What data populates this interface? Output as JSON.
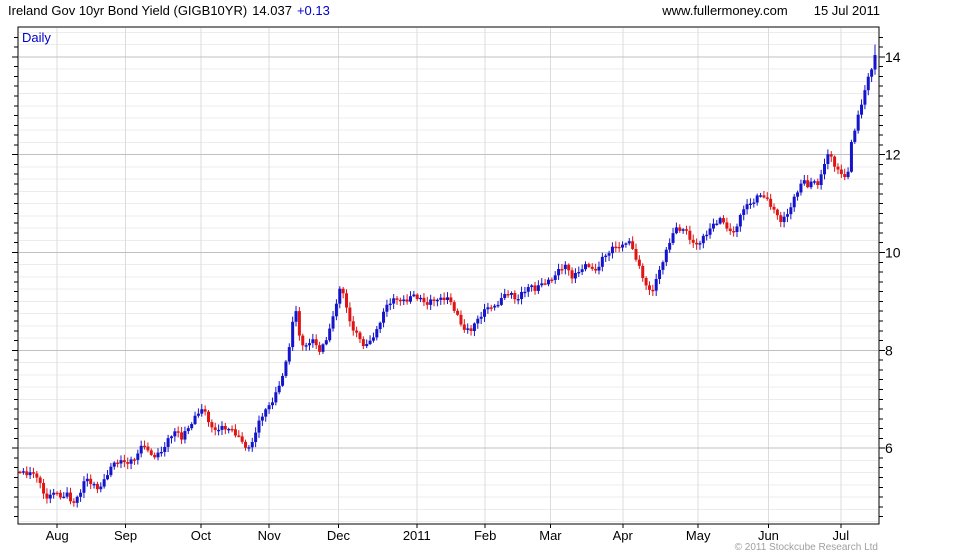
{
  "header": {
    "title": "Ireland Gov 10yr Bond Yield (GIGB10YR)",
    "last_value": "14.037",
    "change": "+0.13",
    "website": "www.fullermoney.com",
    "date": "15 Jul 2011"
  },
  "chart": {
    "frequency_label": "Daily",
    "copyright": "© 2011 Stockcube Research Ltd"
  },
  "colors": {
    "up": "#1414cc",
    "down": "#e01414",
    "grid_minor": "#ececec",
    "grid_major": "#c0c0c0",
    "grid_vertical": "#dcdcdc",
    "axis": "#000000",
    "accent_blue": "#0000cc",
    "copyright_gray": "#a0a0a0"
  },
  "chart_data": {
    "type": "candlestick",
    "title": "Ireland Gov 10yr Bond Yield (GIGB10YR)",
    "frequency": "Daily",
    "last_close": 14.037,
    "change": "+0.13",
    "x_domain": [
      "15 Jul 2010",
      "15 Jul 2011"
    ],
    "ylim": [
      4.45,
      14.61
    ],
    "y_major_ticks": [
      6,
      8,
      10,
      12,
      14
    ],
    "y_minor_tick_step": 0.2,
    "grid_minor_step": 0.25,
    "bar_count": 255,
    "final_high": 14.25,
    "legend_position": "none",
    "grid": "on",
    "month_ticks": [
      {
        "label": "Aug",
        "t": 0.0455
      },
      {
        "label": "Sep",
        "t": 0.1249
      },
      {
        "label": "Oct",
        "t": 0.2124
      },
      {
        "label": "Nov",
        "t": 0.2917
      },
      {
        "label": "Dec",
        "t": 0.3722
      },
      {
        "label": "2011",
        "t": 0.4632
      },
      {
        "label": "Feb",
        "t": 0.5426
      },
      {
        "label": "Mar",
        "t": 0.6184
      },
      {
        "label": "Apr",
        "t": 0.7024
      },
      {
        "label": "May",
        "t": 0.79
      },
      {
        "label": "Jun",
        "t": 0.8716
      },
      {
        "label": "Jul",
        "t": 0.9557
      }
    ],
    "points_note": "digitized daily-close path; t = fraction of time axis from 15 Jul 2010 to 15 Jul 2011, v = yield %",
    "points": [
      [
        0.002,
        5.5
      ],
      [
        0.012,
        5.45
      ],
      [
        0.021,
        5.48
      ],
      [
        0.028,
        5.18
      ],
      [
        0.035,
        4.95
      ],
      [
        0.042,
        5.12
      ],
      [
        0.049,
        4.95
      ],
      [
        0.056,
        5.1
      ],
      [
        0.063,
        4.9
      ],
      [
        0.07,
        5.0
      ],
      [
        0.078,
        5.35
      ],
      [
        0.085,
        5.28
      ],
      [
        0.092,
        5.18
      ],
      [
        0.1,
        5.35
      ],
      [
        0.107,
        5.6
      ],
      [
        0.116,
        5.7
      ],
      [
        0.126,
        5.72
      ],
      [
        0.134,
        5.78
      ],
      [
        0.141,
        5.95
      ],
      [
        0.146,
        6.08
      ],
      [
        0.153,
        5.83
      ],
      [
        0.161,
        5.86
      ],
      [
        0.169,
        6.02
      ],
      [
        0.177,
        6.25
      ],
      [
        0.184,
        6.32
      ],
      [
        0.19,
        6.2
      ],
      [
        0.198,
        6.45
      ],
      [
        0.207,
        6.68
      ],
      [
        0.212,
        6.8
      ],
      [
        0.218,
        6.68
      ],
      [
        0.226,
        6.35
      ],
      [
        0.235,
        6.45
      ],
      [
        0.243,
        6.42
      ],
      [
        0.251,
        6.3
      ],
      [
        0.26,
        6.12
      ],
      [
        0.268,
        6.0
      ],
      [
        0.275,
        6.3
      ],
      [
        0.282,
        6.62
      ],
      [
        0.291,
        6.82
      ],
      [
        0.298,
        7.05
      ],
      [
        0.306,
        7.45
      ],
      [
        0.313,
        7.85
      ],
      [
        0.319,
        8.55
      ],
      [
        0.322,
        8.85
      ],
      [
        0.327,
        8.3
      ],
      [
        0.331,
        8.05
      ],
      [
        0.338,
        8.2
      ],
      [
        0.345,
        8.22
      ],
      [
        0.35,
        7.95
      ],
      [
        0.356,
        8.12
      ],
      [
        0.362,
        8.4
      ],
      [
        0.366,
        8.7
      ],
      [
        0.371,
        9.1
      ],
      [
        0.375,
        9.32
      ],
      [
        0.378,
        9.2
      ],
      [
        0.382,
        8.85
      ],
      [
        0.386,
        8.5
      ],
      [
        0.392,
        8.35
      ],
      [
        0.398,
        8.18
      ],
      [
        0.404,
        8.08
      ],
      [
        0.41,
        8.28
      ],
      [
        0.415,
        8.32
      ],
      [
        0.421,
        8.6
      ],
      [
        0.427,
        8.85
      ],
      [
        0.434,
        9.02
      ],
      [
        0.442,
        9.08
      ],
      [
        0.45,
        9.0
      ],
      [
        0.457,
        9.1
      ],
      [
        0.466,
        9.05
      ],
      [
        0.474,
        8.97
      ],
      [
        0.482,
        9.06
      ],
      [
        0.49,
        9.02
      ],
      [
        0.498,
        9.05
      ],
      [
        0.504,
        8.95
      ],
      [
        0.511,
        8.7
      ],
      [
        0.518,
        8.45
      ],
      [
        0.525,
        8.38
      ],
      [
        0.532,
        8.55
      ],
      [
        0.539,
        8.75
      ],
      [
        0.547,
        8.95
      ],
      [
        0.554,
        8.88
      ],
      [
        0.562,
        9.05
      ],
      [
        0.571,
        9.18
      ],
      [
        0.578,
        9.05
      ],
      [
        0.586,
        9.2
      ],
      [
        0.594,
        9.3
      ],
      [
        0.601,
        9.22
      ],
      [
        0.609,
        9.38
      ],
      [
        0.618,
        9.45
      ],
      [
        0.627,
        9.6
      ],
      [
        0.635,
        9.72
      ],
      [
        0.644,
        9.5
      ],
      [
        0.653,
        9.68
      ],
      [
        0.662,
        9.75
      ],
      [
        0.67,
        9.55
      ],
      [
        0.679,
        9.9
      ],
      [
        0.687,
        10.05
      ],
      [
        0.694,
        10.15
      ],
      [
        0.7,
        10.05
      ],
      [
        0.708,
        10.25
      ],
      [
        0.715,
        10.05
      ],
      [
        0.722,
        9.7
      ],
      [
        0.729,
        9.35
      ],
      [
        0.735,
        9.12
      ],
      [
        0.742,
        9.45
      ],
      [
        0.749,
        9.85
      ],
      [
        0.756,
        10.2
      ],
      [
        0.762,
        10.48
      ],
      [
        0.77,
        10.45
      ],
      [
        0.777,
        10.4
      ],
      [
        0.784,
        10.18
      ],
      [
        0.791,
        10.22
      ],
      [
        0.798,
        10.35
      ],
      [
        0.806,
        10.5
      ],
      [
        0.815,
        10.68
      ],
      [
        0.821,
        10.62
      ],
      [
        0.828,
        10.4
      ],
      [
        0.835,
        10.52
      ],
      [
        0.843,
        10.9
      ],
      [
        0.851,
        11.0
      ],
      [
        0.858,
        11.15
      ],
      [
        0.863,
        11.22
      ],
      [
        0.869,
        11.08
      ],
      [
        0.875,
        10.92
      ],
      [
        0.881,
        10.75
      ],
      [
        0.887,
        10.65
      ],
      [
        0.893,
        10.8
      ],
      [
        0.9,
        11.05
      ],
      [
        0.907,
        11.3
      ],
      [
        0.912,
        11.45
      ],
      [
        0.918,
        11.35
      ],
      [
        0.924,
        11.5
      ],
      [
        0.93,
        11.42
      ],
      [
        0.935,
        11.7
      ],
      [
        0.939,
        12.02
      ],
      [
        0.944,
        11.92
      ],
      [
        0.949,
        11.75
      ],
      [
        0.954,
        11.62
      ],
      [
        0.96,
        11.6
      ],
      [
        0.965,
        11.65
      ],
      [
        0.968,
        12.3
      ],
      [
        0.973,
        12.55
      ],
      [
        0.977,
        12.85
      ],
      [
        0.98,
        13.05
      ],
      [
        0.984,
        13.3
      ],
      [
        0.987,
        13.55
      ],
      [
        0.991,
        13.75
      ],
      [
        0.993,
        13.95
      ],
      [
        0.996,
        14.08
      ],
      [
        1.0,
        14.037
      ]
    ]
  }
}
